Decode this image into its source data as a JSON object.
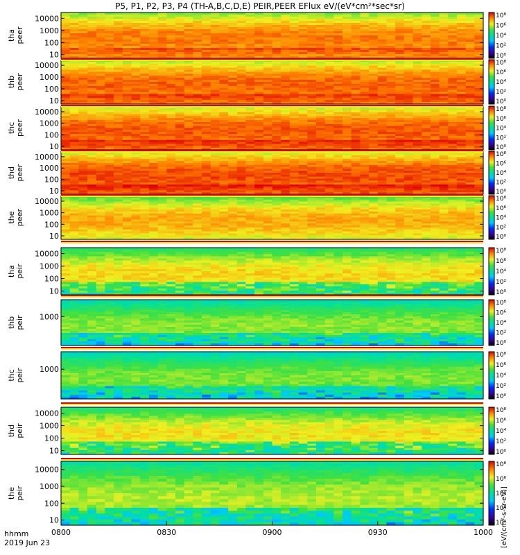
{
  "title": "P5, P1, P2, P3, P4 (TH-A,B,C,D,E) PEIR,PEER EFlux eV/(eV*cm²*sec*sr)",
  "units": "[eV/(cm²-s-sr-eV)]",
  "colorbar_ticks": [
    "10⁸",
    "10⁶",
    "10⁴",
    "10²",
    "10⁰"
  ],
  "footer": {
    "line1": "hhmm",
    "line2": "2019 Jun 23"
  },
  "chart_data": {
    "type": "heatmap",
    "x_tick_labels": [
      "0800",
      "0830",
      "0900",
      "0930",
      "1000"
    ],
    "x_range": [
      "0800",
      "1000"
    ],
    "y_scale": "log",
    "colorbar_scale": "log",
    "panels": [
      {
        "name": "tha peer",
        "ylabel": [
          "tha",
          "peer"
        ],
        "yticks": [
          "10",
          "100",
          "1000",
          "10000"
        ],
        "ylim_eV": [
          5,
          30000
        ],
        "dominant_level": 6.2
      },
      {
        "name": "thb peer",
        "ylabel": [
          "thb",
          "peer"
        ],
        "yticks": [
          "10",
          "100",
          "1000",
          "10000"
        ],
        "ylim_eV": [
          5,
          30000
        ],
        "dominant_level": 6.4
      },
      {
        "name": "thc peer",
        "ylabel": [
          "thc",
          "peer"
        ],
        "yticks": [
          "10",
          "100",
          "1000",
          "10000"
        ],
        "ylim_eV": [
          5,
          30000
        ],
        "dominant_level": 6.5
      },
      {
        "name": "thd peer",
        "ylabel": [
          "thd",
          "peer"
        ],
        "yticks": [
          "10",
          "100",
          "1000",
          "10000"
        ],
        "ylim_eV": [
          5,
          30000
        ],
        "dominant_level": 6.6
      },
      {
        "name": "the peer",
        "ylabel": [
          "the",
          "peer"
        ],
        "yticks": [
          "10",
          "100",
          "1000",
          "10000"
        ],
        "ylim_eV": [
          5,
          30000
        ],
        "dominant_level": 5.8
      },
      {
        "name": "tha peir",
        "ylabel": [
          "tha",
          "peir"
        ],
        "yticks": [
          "10",
          "100",
          "1000",
          "10000"
        ],
        "ylim_eV": [
          5,
          30000
        ],
        "dominant_level": 5.4
      },
      {
        "name": "thb peir",
        "ylabel": [
          "thb",
          "peir"
        ],
        "yticks": [
          "1000"
        ],
        "ylim_eV": [
          20,
          10000
        ],
        "dominant_level": 4.6
      },
      {
        "name": "thc peir",
        "ylabel": [
          "thc",
          "peir"
        ],
        "yticks": [
          "1000"
        ],
        "ylim_eV": [
          20,
          10000
        ],
        "dominant_level": 4.5
      },
      {
        "name": "thd peir",
        "ylabel": [
          "thd",
          "peir"
        ],
        "yticks": [
          "10",
          "100",
          "1000",
          "10000"
        ],
        "ylim_eV": [
          5,
          30000
        ],
        "dominant_level": 5.3
      },
      {
        "name": "the peir",
        "ylabel": [
          "the",
          "peir"
        ],
        "yticks": [
          "10",
          "100",
          "1000",
          "10000"
        ],
        "ylim_eV": [
          5,
          30000
        ],
        "dominant_level": 4.8
      }
    ]
  }
}
